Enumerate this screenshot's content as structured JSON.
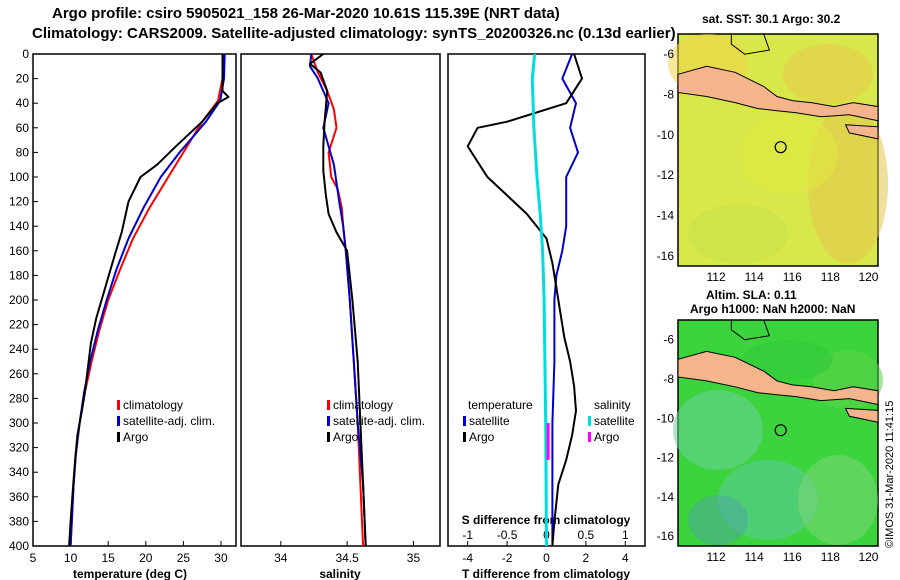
{
  "header": {
    "title_line1": "Argo profile: csiro 5905021_158 26-Mar-2020 10.61S 115.39E (NRT data)",
    "title_line2": "Climatology: CARS2009. Satellite-adjusted climatology: synTS_20200326.nc (0.13d earlier)"
  },
  "maps": {
    "sst_title": "sat. SST: 30.1 Argo: 30.2",
    "sla_title_1": "Altim. SLA: 0.11",
    "sla_title_2": "Argo h1000: NaN h2000: NaN",
    "watermark": "©IMOS 31-Mar-2020 11:41:15"
  },
  "colors": {
    "climatology": "#ff0000",
    "satellite": "#0000cc",
    "argo": "#000000",
    "salinity_satellite": "#00dddd",
    "salinity_argo": "#ff00ff",
    "land": "#f4b48c",
    "sst_field": "#d8e84a",
    "sla_field": "#3cd43c"
  },
  "chart_data": [
    {
      "type": "line",
      "panel": "temperature",
      "xlabel": "temperature (deg C)",
      "ylabel": "",
      "xlim": [
        5,
        32
      ],
      "ylim": [
        400,
        0
      ],
      "xticks": [
        5,
        10,
        15,
        20,
        25,
        30
      ],
      "yticks": [
        0,
        20,
        40,
        60,
        80,
        100,
        120,
        140,
        160,
        180,
        200,
        220,
        240,
        260,
        280,
        300,
        320,
        340,
        360,
        380,
        400
      ],
      "legend": [
        "climatology",
        "satellite-adj. clim.",
        "Argo"
      ],
      "series": [
        {
          "name": "climatology",
          "color": "#ff0000",
          "points": [
            [
              30.3,
              0
            ],
            [
              30.2,
              20
            ],
            [
              29.6,
              38
            ],
            [
              27.5,
              55
            ],
            [
              25.5,
              75
            ],
            [
              23.0,
              100
            ],
            [
              20.5,
              125
            ],
            [
              18.3,
              150
            ],
            [
              16.6,
              175
            ],
            [
              15.0,
              200
            ],
            [
              13.8,
              225
            ],
            [
              12.8,
              250
            ],
            [
              11.9,
              275
            ],
            [
              11.2,
              300
            ],
            [
              10.7,
              325
            ],
            [
              10.4,
              350
            ],
            [
              10.2,
              375
            ],
            [
              10.0,
              400
            ]
          ]
        },
        {
          "name": "satellite-adj. clim.",
          "color": "#0000cc",
          "points": [
            [
              30.5,
              0
            ],
            [
              30.4,
              20
            ],
            [
              29.9,
              38
            ],
            [
              28.0,
              55
            ],
            [
              24.5,
              80
            ],
            [
              22.0,
              100
            ],
            [
              19.7,
              125
            ],
            [
              17.7,
              150
            ],
            [
              16.1,
              175
            ],
            [
              14.8,
              200
            ],
            [
              13.6,
              225
            ],
            [
              12.6,
              250
            ],
            [
              11.8,
              275
            ],
            [
              11.2,
              300
            ],
            [
              10.7,
              325
            ],
            [
              10.4,
              350
            ],
            [
              10.2,
              375
            ],
            [
              10.0,
              400
            ]
          ]
        },
        {
          "name": "Argo",
          "color": "#000000",
          "points": [
            [
              30.2,
              0
            ],
            [
              30.2,
              30
            ],
            [
              31.0,
              35
            ],
            [
              29.5,
              40
            ],
            [
              27.5,
              55
            ],
            [
              24.0,
              75
            ],
            [
              21.5,
              90
            ],
            [
              19.3,
              100
            ],
            [
              17.7,
              120
            ],
            [
              16.8,
              145
            ],
            [
              15.8,
              165
            ],
            [
              14.6,
              190
            ],
            [
              13.4,
              215
            ],
            [
              12.7,
              235
            ],
            [
              12.3,
              255
            ],
            [
              11.9,
              275
            ],
            [
              11.5,
              290
            ],
            [
              10.9,
              310
            ],
            [
              10.6,
              330
            ],
            [
              10.3,
              355
            ],
            [
              10.0,
              380
            ],
            [
              9.8,
              400
            ]
          ]
        }
      ]
    },
    {
      "type": "line",
      "panel": "salinity",
      "xlabel": "salinity",
      "xlim": [
        33.7,
        35.2
      ],
      "ylim": [
        400,
        0
      ],
      "xticks": [
        34,
        34.5,
        35
      ],
      "xtick_labels": [
        "34",
        "34.5",
        "35"
      ],
      "legend": [
        "climatology",
        "satellite-adj. clim.",
        "Argo"
      ],
      "series": [
        {
          "name": "climatology",
          "color": "#ff0000",
          "points": [
            [
              34.23,
              0
            ],
            [
              34.28,
              15
            ],
            [
              34.35,
              30
            ],
            [
              34.4,
              45
            ],
            [
              34.42,
              60
            ],
            [
              34.36,
              80
            ],
            [
              34.38,
              100
            ],
            [
              34.43,
              110
            ],
            [
              34.46,
              125
            ],
            [
              34.47,
              140
            ],
            [
              34.49,
              160
            ],
            [
              34.52,
              200
            ],
            [
              34.55,
              250
            ],
            [
              34.58,
              300
            ],
            [
              34.62,
              400
            ]
          ]
        },
        {
          "name": "satellite-adj. clim.",
          "color": "#0000cc",
          "points": [
            [
              34.23,
              0
            ],
            [
              34.22,
              10
            ],
            [
              34.28,
              20
            ],
            [
              34.36,
              40
            ],
            [
              34.32,
              60
            ],
            [
              34.4,
              90
            ],
            [
              34.44,
              120
            ],
            [
              34.47,
              140
            ],
            [
              34.49,
              160
            ],
            [
              34.52,
              200
            ],
            [
              34.55,
              250
            ],
            [
              34.58,
              300
            ],
            [
              34.62,
              350
            ],
            [
              34.64,
              400
            ]
          ]
        },
        {
          "name": "Argo",
          "color": "#000000",
          "points": [
            [
              34.32,
              0
            ],
            [
              34.22,
              8
            ],
            [
              34.3,
              15
            ],
            [
              34.35,
              30
            ],
            [
              34.33,
              55
            ],
            [
              34.32,
              75
            ],
            [
              34.32,
              95
            ],
            [
              34.34,
              115
            ],
            [
              34.36,
              130
            ],
            [
              34.42,
              145
            ],
            [
              34.5,
              160
            ],
            [
              34.54,
              200
            ],
            [
              34.58,
              250
            ],
            [
              34.6,
              300
            ],
            [
              34.62,
              350
            ],
            [
              34.64,
              400
            ]
          ]
        }
      ]
    },
    {
      "type": "line",
      "panel": "differences",
      "xlabel": "T difference from climatology",
      "xlim": [
        -5,
        5
      ],
      "ylim": [
        400,
        0
      ],
      "xticks": [
        -4,
        -2,
        0,
        2,
        4
      ],
      "secondary_xlabel": "S difference from climatology",
      "secondary_xlim": [
        -1.25,
        1.25
      ],
      "secondary_xticks": [
        -1,
        -0.5,
        0,
        0.5,
        1
      ],
      "secondary_xtick_labels": [
        "-1",
        "-0.5",
        "0",
        "0.5",
        "1"
      ],
      "legend": [
        "temperature",
        "satellite",
        "Argo",
        "salinity",
        "satellite",
        "Argo"
      ],
      "series": [
        {
          "name": "T satellite",
          "color": "#0000cc",
          "points": [
            [
              1.3,
              0
            ],
            [
              0.8,
              20
            ],
            [
              1.5,
              40
            ],
            [
              1.2,
              60
            ],
            [
              1.6,
              80
            ],
            [
              1.0,
              100
            ],
            [
              1.0,
              120
            ],
            [
              1.0,
              140
            ],
            [
              0.8,
              160
            ],
            [
              0.5,
              180
            ],
            [
              0.4,
              200
            ],
            [
              0.4,
              250
            ],
            [
              0.3,
              300
            ],
            [
              0.3,
              400
            ]
          ]
        },
        {
          "name": "T Argo",
          "color": "#000000",
          "points": [
            [
              1.4,
              0
            ],
            [
              1.8,
              20
            ],
            [
              1.0,
              40
            ],
            [
              -2.0,
              55
            ],
            [
              -3.5,
              60
            ],
            [
              -4.0,
              75
            ],
            [
              -3.0,
              100
            ],
            [
              -2.0,
              115
            ],
            [
              -1.0,
              130
            ],
            [
              0.0,
              150
            ],
            [
              0.3,
              170
            ],
            [
              0.5,
              190
            ],
            [
              0.7,
              210
            ],
            [
              0.9,
              230
            ],
            [
              1.2,
              250
            ],
            [
              1.4,
              270
            ],
            [
              1.5,
              290
            ],
            [
              1.3,
              310
            ],
            [
              1.0,
              330
            ],
            [
              0.6,
              350
            ],
            [
              0.4,
              380
            ],
            [
              0.3,
              400
            ]
          ]
        },
        {
          "name": "S satellite",
          "color": "#00dddd",
          "points": [
            [
              -0.15,
              0
            ],
            [
              -0.18,
              20
            ],
            [
              -0.16,
              60
            ],
            [
              -0.12,
              100
            ],
            [
              -0.08,
              130
            ],
            [
              -0.05,
              160
            ],
            [
              -0.03,
              200
            ],
            [
              -0.02,
              250
            ],
            [
              -0.01,
              300
            ],
            [
              0.0,
              400
            ]
          ]
        },
        {
          "name": "S Argo",
          "color": "#ff00ff",
          "points": [
            [
              0.02,
              300
            ],
            [
              0.02,
              330
            ]
          ]
        }
      ]
    },
    {
      "type": "heatmap",
      "panel": "sst-map",
      "xlim": [
        110,
        120.5
      ],
      "ylim": [
        -16.5,
        -5
      ],
      "xticks": [
        112,
        114,
        116,
        118,
        120
      ],
      "yticks": [
        -6,
        -8,
        -10,
        -12,
        -14,
        -16
      ],
      "argo_position": [
        115.39,
        -10.61
      ]
    },
    {
      "type": "heatmap",
      "panel": "sla-map",
      "xlim": [
        110,
        120.5
      ],
      "ylim": [
        -16.5,
        -5
      ],
      "xticks": [
        112,
        114,
        116,
        118,
        120
      ],
      "yticks": [
        -6,
        -8,
        -10,
        -12,
        -14,
        -16
      ],
      "argo_position": [
        115.39,
        -10.61
      ]
    }
  ]
}
